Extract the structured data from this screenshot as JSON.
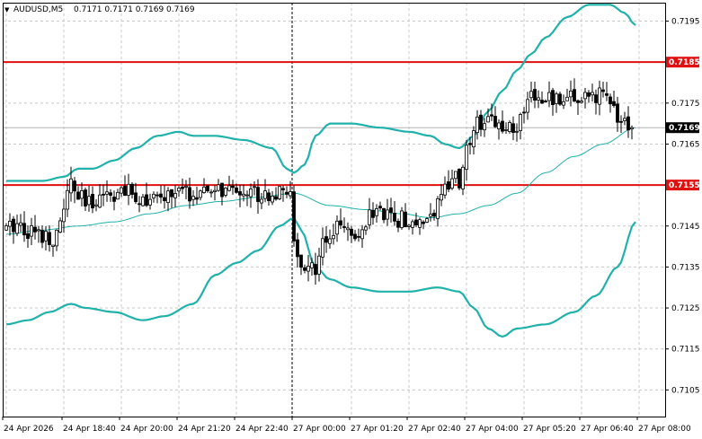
{
  "header": {
    "symbol_label": "AUDUSD,M5",
    "ohlc_label": "0.7171 0.7171 0.7169 0.7169"
  },
  "chart_data": {
    "type": "candlestick",
    "symbol": "AUDUSD",
    "timeframe": "M5",
    "ylim": [
      0.70985,
      0.71995
    ],
    "y_ticks": [
      0.7105,
      0.7115,
      0.7125,
      0.7135,
      0.7145,
      0.7155,
      0.7165,
      0.7175,
      0.7185,
      0.7195
    ],
    "x_ticks": [
      {
        "label": "24 Apr 2026",
        "index": 0
      },
      {
        "label": "24 Apr 18:40",
        "index": 16
      },
      {
        "label": "24 Apr 20:00",
        "index": 32
      },
      {
        "label": "24 Apr 21:20",
        "index": 48
      },
      {
        "label": "24 Apr 22:40",
        "index": 64
      },
      {
        "label": "27 Apr 00:00",
        "index": 80
      },
      {
        "label": "27 Apr 01:20",
        "index": 96
      },
      {
        "label": "27 Apr 02:40",
        "index": 112
      },
      {
        "label": "27 Apr 04:00",
        "index": 128
      },
      {
        "label": "27 Apr 05:20",
        "index": 144
      },
      {
        "label": "27 Apr 06:40",
        "index": 160
      },
      {
        "label": "27 Apr 08:00",
        "index": 176
      }
    ],
    "bar_count": 175,
    "session_break_index": 80,
    "current_price": 0.7169,
    "horizontal_levels": [
      {
        "price": 0.7185,
        "label": "0.7185",
        "color": "#e01010"
      },
      {
        "price": 0.7155,
        "label": "0.7155",
        "color": "#e01010"
      }
    ],
    "price_tag": {
      "price": 0.7169,
      "label": "0.7169"
    },
    "close_anchors": [
      [
        0,
        0.7144
      ],
      [
        3,
        0.7146
      ],
      [
        6,
        0.7144
      ],
      [
        10,
        0.7143
      ],
      [
        14,
        0.7142
      ],
      [
        16,
        0.715
      ],
      [
        18,
        0.7155
      ],
      [
        20,
        0.7152
      ],
      [
        23,
        0.715
      ],
      [
        26,
        0.7153
      ],
      [
        30,
        0.7153
      ],
      [
        34,
        0.7153
      ],
      [
        38,
        0.7152
      ],
      [
        42,
        0.7151
      ],
      [
        46,
        0.7153
      ],
      [
        50,
        0.7153
      ],
      [
        54,
        0.7152
      ],
      [
        58,
        0.7154
      ],
      [
        62,
        0.7153
      ],
      [
        66,
        0.7154
      ],
      [
        70,
        0.7153
      ],
      [
        74,
        0.7153
      ],
      [
        78,
        0.7152
      ],
      [
        79,
        0.7154
      ],
      [
        80,
        0.7143
      ],
      [
        81,
        0.7136
      ],
      [
        83,
        0.7135
      ],
      [
        86,
        0.7134
      ],
      [
        88,
        0.7143
      ],
      [
        90,
        0.7142
      ],
      [
        93,
        0.7145
      ],
      [
        96,
        0.7142
      ],
      [
        100,
        0.7147
      ],
      [
        104,
        0.7148
      ],
      [
        108,
        0.7147
      ],
      [
        112,
        0.7146
      ],
      [
        116,
        0.7147
      ],
      [
        120,
        0.715
      ],
      [
        124,
        0.7157
      ],
      [
        126,
        0.7156
      ],
      [
        128,
        0.7163
      ],
      [
        130,
        0.717
      ],
      [
        134,
        0.717
      ],
      [
        138,
        0.7169
      ],
      [
        142,
        0.717
      ],
      [
        144,
        0.7172
      ],
      [
        146,
        0.7177
      ],
      [
        150,
        0.7176
      ],
      [
        154,
        0.7176
      ],
      [
        158,
        0.7177
      ],
      [
        162,
        0.7176
      ],
      [
        165,
        0.7177
      ],
      [
        168,
        0.7175
      ],
      [
        171,
        0.717
      ],
      [
        174,
        0.7169
      ]
    ],
    "bollinger_upper_anchors": [
      [
        0,
        0.7156
      ],
      [
        10,
        0.7156
      ],
      [
        16,
        0.7157
      ],
      [
        20,
        0.7159
      ],
      [
        24,
        0.7159
      ],
      [
        30,
        0.7161
      ],
      [
        36,
        0.7164
      ],
      [
        42,
        0.7167
      ],
      [
        48,
        0.7168
      ],
      [
        52,
        0.7167
      ],
      [
        58,
        0.7167
      ],
      [
        66,
        0.7166
      ],
      [
        74,
        0.7164
      ],
      [
        78,
        0.7159
      ],
      [
        80,
        0.7158
      ],
      [
        83,
        0.716
      ],
      [
        86,
        0.7167
      ],
      [
        90,
        0.717
      ],
      [
        96,
        0.717
      ],
      [
        104,
        0.7169
      ],
      [
        112,
        0.7168
      ],
      [
        118,
        0.7167
      ],
      [
        122,
        0.7165
      ],
      [
        126,
        0.7164
      ],
      [
        130,
        0.7167
      ],
      [
        134,
        0.7173
      ],
      [
        138,
        0.7178
      ],
      [
        142,
        0.7183
      ],
      [
        146,
        0.7187
      ],
      [
        150,
        0.7191
      ],
      [
        156,
        0.7196
      ],
      [
        162,
        0.7199
      ],
      [
        168,
        0.7199
      ],
      [
        172,
        0.7197
      ],
      [
        175,
        0.7194
      ]
    ],
    "bollinger_middle_anchors": [
      [
        0,
        0.7143
      ],
      [
        10,
        0.7144
      ],
      [
        20,
        0.7145
      ],
      [
        30,
        0.7146
      ],
      [
        40,
        0.7148
      ],
      [
        50,
        0.715
      ],
      [
        60,
        0.7151
      ],
      [
        70,
        0.7152
      ],
      [
        80,
        0.7153
      ],
      [
        90,
        0.715
      ],
      [
        100,
        0.7149
      ],
      [
        110,
        0.7148
      ],
      [
        118,
        0.7147
      ],
      [
        126,
        0.7148
      ],
      [
        134,
        0.715
      ],
      [
        142,
        0.7153
      ],
      [
        150,
        0.7158
      ],
      [
        158,
        0.7162
      ],
      [
        166,
        0.7165
      ],
      [
        175,
        0.7169
      ]
    ],
    "bollinger_lower_anchors": [
      [
        0,
        0.7121
      ],
      [
        6,
        0.7122
      ],
      [
        12,
        0.7124
      ],
      [
        18,
        0.7126
      ],
      [
        22,
        0.7125
      ],
      [
        30,
        0.7124
      ],
      [
        38,
        0.7122
      ],
      [
        44,
        0.7123
      ],
      [
        52,
        0.7126
      ],
      [
        58,
        0.7133
      ],
      [
        64,
        0.7136
      ],
      [
        70,
        0.7139
      ],
      [
        76,
        0.7145
      ],
      [
        80,
        0.7147
      ],
      [
        82,
        0.7144
      ],
      [
        86,
        0.7135
      ],
      [
        90,
        0.7132
      ],
      [
        96,
        0.713
      ],
      [
        104,
        0.7129
      ],
      [
        112,
        0.7129
      ],
      [
        120,
        0.713
      ],
      [
        126,
        0.7129
      ],
      [
        130,
        0.7125
      ],
      [
        134,
        0.712
      ],
      [
        138,
        0.7118
      ],
      [
        142,
        0.712
      ],
      [
        150,
        0.7121
      ],
      [
        158,
        0.7124
      ],
      [
        164,
        0.7128
      ],
      [
        170,
        0.7135
      ],
      [
        175,
        0.7146
      ]
    ]
  }
}
